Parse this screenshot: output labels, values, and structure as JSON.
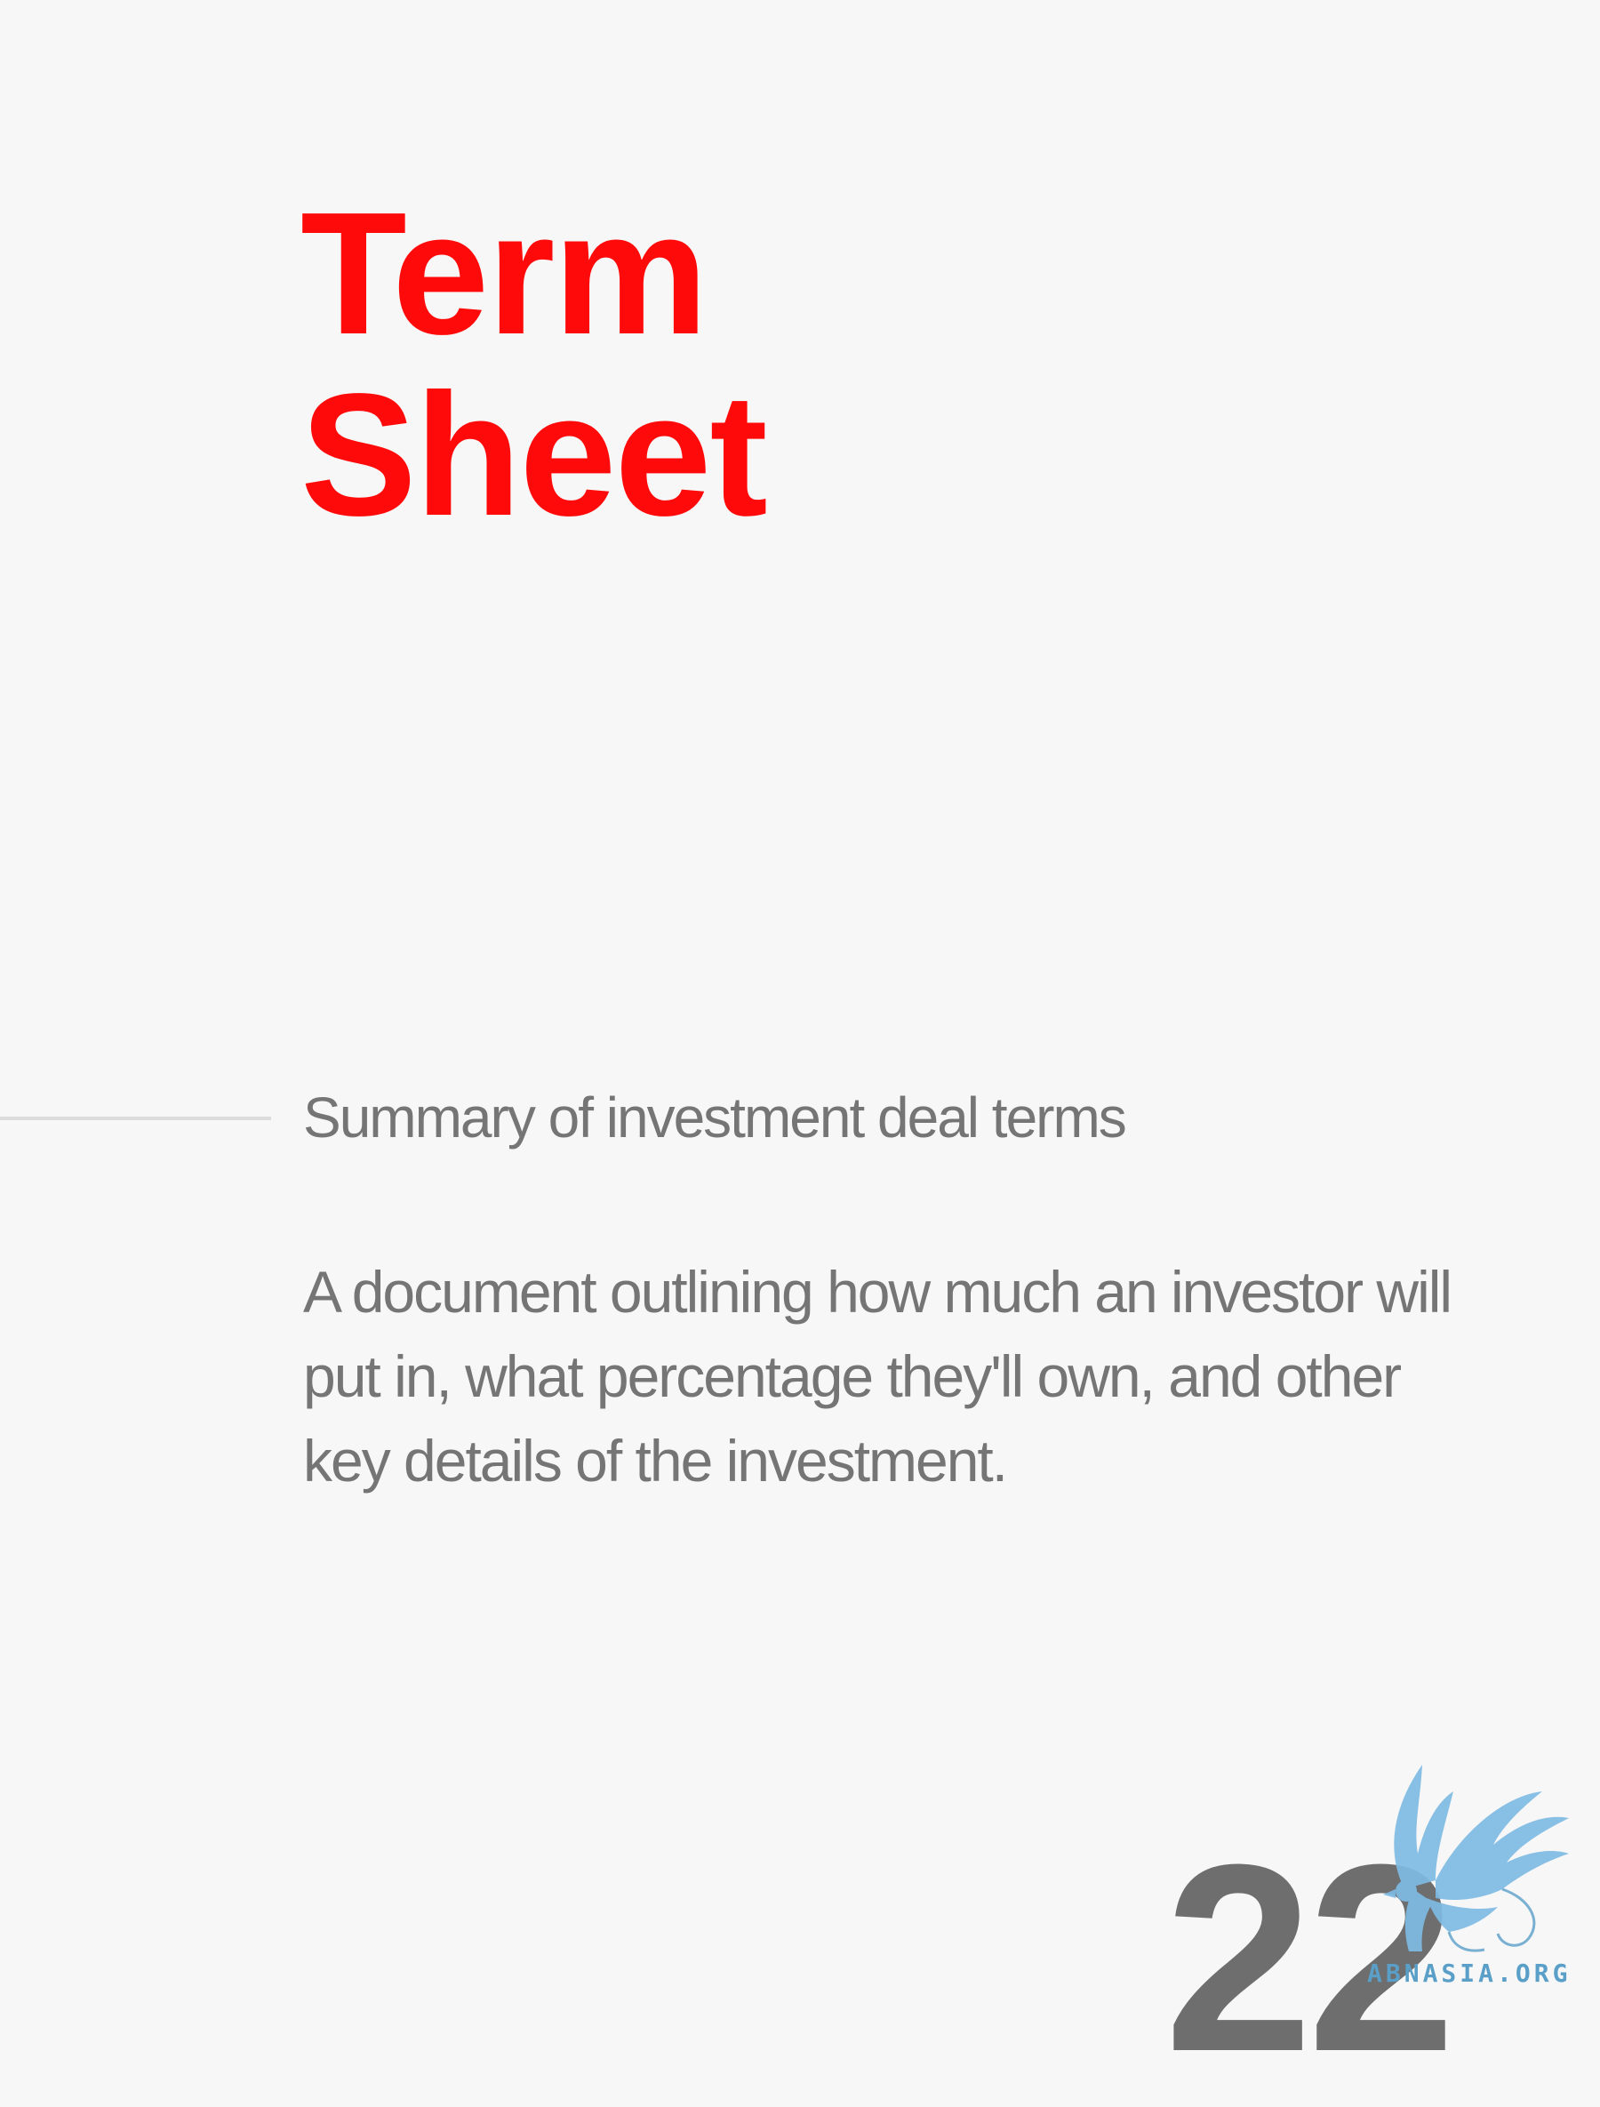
{
  "title": {
    "line1": "Term",
    "line2": "Sheet"
  },
  "subtitle": "Summary of investment deal terms",
  "definition": "A document outlining how much an investor will put in, what percentage they'll own, and other key details of the investment.",
  "page_number": "22",
  "watermark": {
    "text": "ABNASIA.ORG",
    "icon": "griffin-icon",
    "color": "#7fbbe3"
  },
  "colors": {
    "accent": "#ff0a0a",
    "text": "#757575",
    "background": "#f7f7f7"
  }
}
